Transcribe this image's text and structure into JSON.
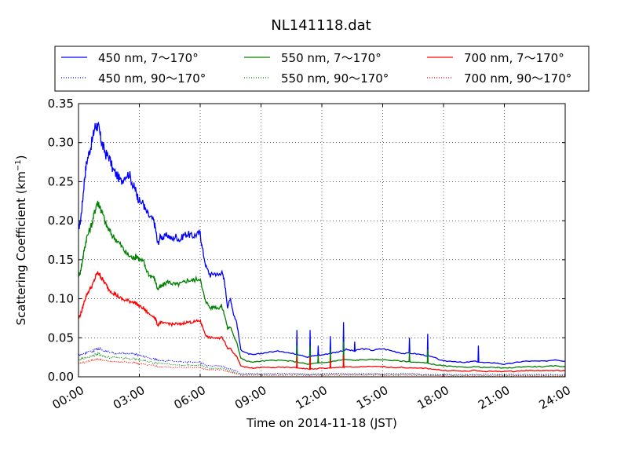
{
  "chart_data": {
    "type": "line",
    "title": "NL141118.dat",
    "xlabel": "Time on 2014-11-18 (JST)",
    "ylabel": "Scattering Coefficient (km",
    "ylabel_sup": "−1",
    "ylabel_end": ")",
    "xlim": [
      0,
      24
    ],
    "ylim": [
      0,
      0.35
    ],
    "grid": true,
    "legend_position": "top",
    "x_ticks": [
      0,
      3,
      6,
      9,
      12,
      15,
      18,
      21,
      24
    ],
    "x_tick_labels": [
      "00:00",
      "03:00",
      "06:00",
      "09:00",
      "12:00",
      "15:00",
      "18:00",
      "21:00",
      "24:00"
    ],
    "y_ticks": [
      0,
      0.05,
      0.1,
      0.15,
      0.2,
      0.25,
      0.3,
      0.35
    ],
    "y_tick_labels": [
      "0.00",
      "0.05",
      "0.10",
      "0.15",
      "0.20",
      "0.25",
      "0.30",
      "0.35"
    ],
    "x_hours": [
      0,
      0.1,
      0.2,
      0.3,
      0.4,
      0.55,
      0.7,
      0.8,
      0.9,
      1.0,
      1.1,
      1.2,
      1.35,
      1.5,
      1.7,
      1.9,
      2.1,
      2.3,
      2.5,
      2.7,
      2.8,
      2.9,
      3.0,
      3.2,
      3.3,
      3.5,
      3.7,
      3.8,
      3.9,
      4.05,
      4.2,
      4.4,
      4.6,
      4.8,
      5.0,
      5.2,
      5.4,
      5.6,
      5.8,
      6.0,
      6.1,
      6.3,
      6.5,
      6.7,
      6.9,
      7.05,
      7.2,
      7.35,
      7.5,
      7.65,
      7.8,
      8.0,
      8.3,
      8.6,
      9.0,
      9.5,
      10.0,
      10.5,
      11.0,
      11.3,
      11.6,
      12.0,
      12.4,
      12.8,
      13.2,
      13.6,
      14.0,
      14.5,
      15.0,
      15.5,
      16.0,
      16.5,
      17.0,
      17.5,
      18.0,
      18.5,
      19.0,
      19.5,
      20.0,
      20.5,
      21.0,
      21.5,
      22.0,
      22.5,
      23.0,
      23.5,
      24.0
    ],
    "series": [
      {
        "name": "450 nm, 7～170°",
        "color": "#0000ff",
        "style": "solid",
        "values": [
          0.19,
          0.2,
          0.225,
          0.255,
          0.275,
          0.29,
          0.305,
          0.32,
          0.322,
          0.318,
          0.305,
          0.295,
          0.285,
          0.282,
          0.265,
          0.258,
          0.25,
          0.258,
          0.26,
          0.245,
          0.24,
          0.232,
          0.225,
          0.222,
          0.213,
          0.205,
          0.2,
          0.19,
          0.17,
          0.18,
          0.178,
          0.182,
          0.176,
          0.18,
          0.175,
          0.182,
          0.183,
          0.18,
          0.182,
          0.184,
          0.165,
          0.14,
          0.13,
          0.133,
          0.13,
          0.135,
          0.122,
          0.09,
          0.1,
          0.08,
          0.07,
          0.035,
          0.03,
          0.028,
          0.03,
          0.032,
          0.033,
          0.03,
          0.028,
          0.025,
          0.027,
          0.028,
          0.03,
          0.032,
          0.035,
          0.033,
          0.036,
          0.034,
          0.036,
          0.033,
          0.03,
          0.03,
          0.028,
          0.025,
          0.02,
          0.02,
          0.018,
          0.02,
          0.018,
          0.018,
          0.016,
          0.018,
          0.02,
          0.02,
          0.02,
          0.022,
          0.02
        ],
        "spikes": [
          [
            10.75,
            0.06
          ],
          [
            11.4,
            0.06
          ],
          [
            11.8,
            0.04
          ],
          [
            12.4,
            0.052
          ],
          [
            13.05,
            0.07
          ],
          [
            13.6,
            0.045
          ],
          [
            16.3,
            0.05
          ],
          [
            17.2,
            0.055
          ],
          [
            19.7,
            0.04
          ]
        ]
      },
      {
        "name": "550 nm, 7～170°",
        "color": "#008000",
        "style": "solid",
        "values": [
          0.13,
          0.135,
          0.15,
          0.165,
          0.178,
          0.188,
          0.2,
          0.212,
          0.222,
          0.222,
          0.215,
          0.208,
          0.195,
          0.188,
          0.18,
          0.175,
          0.168,
          0.16,
          0.155,
          0.152,
          0.154,
          0.155,
          0.15,
          0.148,
          0.14,
          0.13,
          0.128,
          0.122,
          0.112,
          0.115,
          0.118,
          0.122,
          0.12,
          0.118,
          0.119,
          0.121,
          0.124,
          0.123,
          0.125,
          0.126,
          0.112,
          0.096,
          0.088,
          0.09,
          0.088,
          0.091,
          0.08,
          0.062,
          0.064,
          0.052,
          0.045,
          0.024,
          0.02,
          0.019,
          0.02,
          0.021,
          0.021,
          0.02,
          0.018,
          0.016,
          0.017,
          0.018,
          0.019,
          0.021,
          0.022,
          0.021,
          0.022,
          0.022,
          0.022,
          0.021,
          0.02,
          0.019,
          0.018,
          0.016,
          0.014,
          0.013,
          0.012,
          0.013,
          0.012,
          0.012,
          0.011,
          0.012,
          0.013,
          0.013,
          0.013,
          0.014,
          0.013
        ],
        "spikes": [
          [
            10.75,
            0.04
          ],
          [
            11.4,
            0.04
          ],
          [
            11.8,
            0.028
          ],
          [
            12.4,
            0.035
          ],
          [
            13.05,
            0.045
          ],
          [
            16.3,
            0.032
          ],
          [
            17.2,
            0.035
          ]
        ]
      },
      {
        "name": "700 nm, 7～170°",
        "color": "#ff0000",
        "style": "solid",
        "values": [
          0.075,
          0.08,
          0.088,
          0.098,
          0.105,
          0.112,
          0.118,
          0.125,
          0.132,
          0.133,
          0.128,
          0.124,
          0.118,
          0.112,
          0.108,
          0.104,
          0.1,
          0.098,
          0.097,
          0.096,
          0.095,
          0.093,
          0.09,
          0.088,
          0.085,
          0.08,
          0.078,
          0.074,
          0.066,
          0.07,
          0.068,
          0.069,
          0.067,
          0.068,
          0.067,
          0.069,
          0.07,
          0.07,
          0.071,
          0.072,
          0.065,
          0.052,
          0.05,
          0.05,
          0.049,
          0.051,
          0.046,
          0.036,
          0.037,
          0.03,
          0.026,
          0.014,
          0.012,
          0.011,
          0.012,
          0.012,
          0.012,
          0.012,
          0.011,
          0.01,
          0.01,
          0.011,
          0.011,
          0.012,
          0.013,
          0.012,
          0.013,
          0.013,
          0.013,
          0.012,
          0.012,
          0.011,
          0.011,
          0.01,
          0.008,
          0.008,
          0.007,
          0.008,
          0.007,
          0.007,
          0.007,
          0.007,
          0.008,
          0.008,
          0.008,
          0.008,
          0.008
        ],
        "spikes": [
          [
            10.75,
            0.025
          ],
          [
            11.4,
            0.025
          ],
          [
            12.4,
            0.022
          ],
          [
            13.05,
            0.028
          ]
        ]
      },
      {
        "name": "450 nm, 90～170°",
        "color": "#0000ff",
        "style": "dotted",
        "values": [
          0.028,
          0.028,
          0.029,
          0.03,
          0.031,
          0.032,
          0.033,
          0.035,
          0.036,
          0.036,
          0.035,
          0.034,
          0.033,
          0.032,
          0.031,
          0.03,
          0.03,
          0.03,
          0.03,
          0.029,
          0.029,
          0.028,
          0.027,
          0.026,
          0.025,
          0.024,
          0.023,
          0.022,
          0.021,
          0.021,
          0.02,
          0.02,
          0.02,
          0.019,
          0.019,
          0.019,
          0.019,
          0.019,
          0.019,
          0.019,
          0.017,
          0.015,
          0.014,
          0.014,
          0.014,
          0.014,
          0.013,
          0.01,
          0.01,
          0.008,
          0.007,
          0.004,
          0.004,
          0.004,
          0.004,
          0.004,
          0.004,
          0.004,
          0.004,
          0.003,
          0.003,
          0.004,
          0.004,
          0.004,
          0.004,
          0.004,
          0.004,
          0.004,
          0.004,
          0.004,
          0.004,
          0.004,
          0.003,
          0.003,
          0.003,
          0.003,
          0.003,
          0.003,
          0.003,
          0.003,
          0.003,
          0.003,
          0.003,
          0.003,
          0.003,
          0.003,
          0.003
        ],
        "spikes": []
      },
      {
        "name": "550 nm, 90～170°",
        "color": "#008000",
        "style": "dotted",
        "values": [
          0.022,
          0.022,
          0.023,
          0.024,
          0.025,
          0.026,
          0.027,
          0.028,
          0.029,
          0.029,
          0.028,
          0.027,
          0.026,
          0.025,
          0.025,
          0.024,
          0.024,
          0.024,
          0.023,
          0.023,
          0.023,
          0.022,
          0.021,
          0.021,
          0.02,
          0.019,
          0.018,
          0.018,
          0.017,
          0.017,
          0.016,
          0.016,
          0.016,
          0.015,
          0.015,
          0.015,
          0.015,
          0.015,
          0.015,
          0.015,
          0.014,
          0.012,
          0.011,
          0.011,
          0.011,
          0.011,
          0.01,
          0.008,
          0.008,
          0.006,
          0.005,
          0.003,
          0.003,
          0.003,
          0.003,
          0.003,
          0.003,
          0.003,
          0.003,
          0.003,
          0.003,
          0.003,
          0.003,
          0.003,
          0.003,
          0.003,
          0.003,
          0.003,
          0.003,
          0.003,
          0.003,
          0.003,
          0.002,
          0.002,
          0.002,
          0.002,
          0.002,
          0.002,
          0.002,
          0.002,
          0.002,
          0.002,
          0.002,
          0.002,
          0.002,
          0.002,
          0.002
        ],
        "spikes": []
      },
      {
        "name": "700 nm, 90～170°",
        "color": "#ff0000",
        "style": "dotted",
        "values": [
          0.017,
          0.017,
          0.018,
          0.018,
          0.019,
          0.02,
          0.021,
          0.022,
          0.022,
          0.022,
          0.022,
          0.021,
          0.021,
          0.02,
          0.02,
          0.019,
          0.019,
          0.019,
          0.018,
          0.018,
          0.018,
          0.017,
          0.017,
          0.016,
          0.016,
          0.015,
          0.015,
          0.014,
          0.013,
          0.013,
          0.013,
          0.013,
          0.012,
          0.012,
          0.012,
          0.012,
          0.012,
          0.012,
          0.012,
          0.012,
          0.011,
          0.009,
          0.009,
          0.009,
          0.009,
          0.009,
          0.008,
          0.006,
          0.006,
          0.005,
          0.004,
          0.002,
          0.002,
          0.002,
          0.002,
          0.002,
          0.002,
          0.002,
          0.002,
          0.002,
          0.002,
          0.002,
          0.002,
          0.002,
          0.002,
          0.002,
          0.002,
          0.002,
          0.002,
          0.002,
          0.002,
          0.002,
          0.002,
          0.002,
          0.001,
          0.001,
          0.001,
          0.001,
          0.001,
          0.001,
          0.001,
          0.001,
          0.001,
          0.001,
          0.001,
          0.001,
          0.001
        ],
        "spikes": []
      }
    ]
  }
}
